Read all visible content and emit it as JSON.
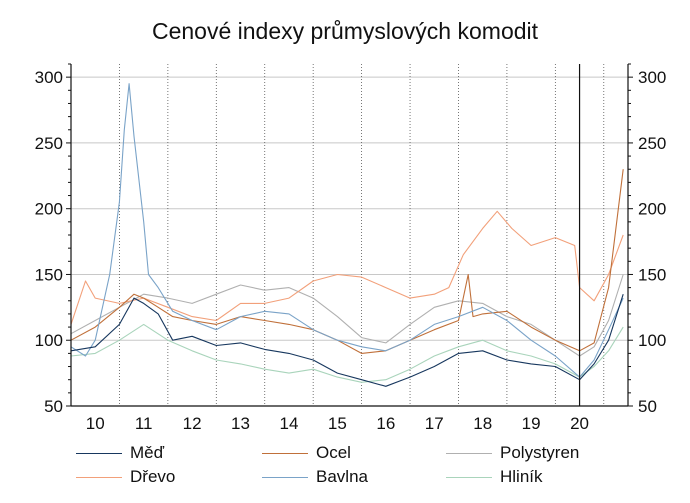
{
  "chart_data": {
    "type": "line",
    "title": "Cenové indexy průmyslových komodit",
    "xlabel": "",
    "ylabel": "",
    "ylim": [
      50,
      310
    ],
    "yticks": [
      50,
      100,
      150,
      200,
      250,
      300
    ],
    "x_range": [
      2009.5,
      2021.0
    ],
    "x_tick_labels": [
      "10",
      "11",
      "12",
      "13",
      "14",
      "15",
      "16",
      "17",
      "18",
      "19",
      "20"
    ],
    "x_tick_years": [
      2010,
      2011,
      2012,
      2013,
      2014,
      2015,
      2016,
      2017,
      2018,
      2019,
      2020
    ],
    "grid": true,
    "legend_position": "bottom",
    "vertical_marker": 2020.0,
    "series": [
      {
        "name": "Měď",
        "color": "#17375e",
        "x": [
          2009.5,
          2010.0,
          2010.5,
          2010.8,
          2011.0,
          2011.3,
          2011.6,
          2012.0,
          2012.5,
          2013.0,
          2013.5,
          2014.0,
          2014.5,
          2015.0,
          2015.5,
          2016.0,
          2016.5,
          2017.0,
          2017.5,
          2018.0,
          2018.5,
          2019.0,
          2019.5,
          2020.0,
          2020.3,
          2020.6,
          2020.9
        ],
        "y": [
          92,
          95,
          112,
          132,
          128,
          120,
          100,
          103,
          96,
          98,
          93,
          90,
          85,
          75,
          70,
          65,
          72,
          80,
          90,
          92,
          85,
          82,
          80,
          70,
          82,
          100,
          135
        ]
      },
      {
        "name": "Ocel",
        "color": "#c0703a",
        "x": [
          2009.5,
          2010.0,
          2010.5,
          2010.8,
          2011.0,
          2011.3,
          2011.6,
          2012.0,
          2012.5,
          2013.0,
          2013.5,
          2014.0,
          2014.5,
          2015.0,
          2015.5,
          2016.0,
          2016.5,
          2017.0,
          2017.5,
          2017.7,
          2017.8,
          2018.0,
          2018.5,
          2019.0,
          2019.5,
          2020.0,
          2020.3,
          2020.6,
          2020.9
        ],
        "y": [
          100,
          110,
          125,
          135,
          132,
          125,
          118,
          115,
          112,
          118,
          115,
          112,
          108,
          100,
          90,
          92,
          100,
          108,
          115,
          150,
          118,
          120,
          122,
          110,
          100,
          92,
          98,
          140,
          230
        ]
      },
      {
        "name": "Polystyren",
        "color": "#b0b0b0",
        "x": [
          2009.5,
          2010.0,
          2010.5,
          2011.0,
          2011.5,
          2012.0,
          2012.5,
          2013.0,
          2013.5,
          2014.0,
          2014.5,
          2015.0,
          2015.5,
          2016.0,
          2016.5,
          2017.0,
          2017.5,
          2018.0,
          2018.5,
          2019.0,
          2019.5,
          2020.0,
          2020.3,
          2020.6,
          2020.9
        ],
        "y": [
          105,
          115,
          125,
          135,
          132,
          128,
          135,
          142,
          138,
          140,
          132,
          118,
          102,
          98,
          112,
          125,
          130,
          128,
          118,
          112,
          100,
          88,
          95,
          115,
          150
        ]
      },
      {
        "name": "Dřevo",
        "color": "#f2a07a",
        "x": [
          2009.5,
          2009.8,
          2010.0,
          2010.5,
          2011.0,
          2011.5,
          2012.0,
          2012.5,
          2013.0,
          2013.5,
          2014.0,
          2014.5,
          2015.0,
          2015.5,
          2016.0,
          2016.5,
          2017.0,
          2017.3,
          2017.6,
          2018.0,
          2018.3,
          2018.6,
          2019.0,
          2019.5,
          2019.9,
          2020.0,
          2020.3,
          2020.6,
          2020.9
        ],
        "y": [
          112,
          145,
          132,
          128,
          132,
          125,
          118,
          115,
          128,
          128,
          132,
          145,
          150,
          148,
          140,
          132,
          135,
          140,
          165,
          185,
          198,
          185,
          172,
          178,
          172,
          140,
          130,
          150,
          180
        ]
      },
      {
        "name": "Bavlna",
        "color": "#7aa3c8",
        "x": [
          2009.5,
          2009.8,
          2010.0,
          2010.3,
          2010.5,
          2010.6,
          2010.7,
          2010.8,
          2011.0,
          2011.1,
          2011.3,
          2011.6,
          2012.0,
          2012.5,
          2013.0,
          2013.5,
          2014.0,
          2014.5,
          2015.0,
          2015.5,
          2016.0,
          2016.5,
          2017.0,
          2017.5,
          2018.0,
          2018.5,
          2019.0,
          2019.5,
          2020.0,
          2020.3,
          2020.6,
          2020.9
        ],
        "y": [
          95,
          88,
          100,
          150,
          205,
          260,
          295,
          255,
          190,
          150,
          140,
          122,
          115,
          108,
          118,
          122,
          120,
          108,
          100,
          95,
          92,
          100,
          112,
          118,
          125,
          115,
          100,
          88,
          72,
          85,
          108,
          132
        ]
      },
      {
        "name": "Hliník",
        "color": "#a9d4bb",
        "x": [
          2009.5,
          2010.0,
          2010.5,
          2011.0,
          2011.5,
          2012.0,
          2012.5,
          2013.0,
          2013.5,
          2014.0,
          2014.5,
          2015.0,
          2015.5,
          2016.0,
          2016.5,
          2017.0,
          2017.5,
          2018.0,
          2018.5,
          2019.0,
          2019.5,
          2020.0,
          2020.3,
          2020.6,
          2020.9
        ],
        "y": [
          88,
          90,
          100,
          112,
          100,
          92,
          85,
          82,
          78,
          75,
          78,
          72,
          68,
          70,
          78,
          88,
          95,
          100,
          92,
          88,
          82,
          72,
          80,
          92,
          110
        ]
      }
    ]
  }
}
